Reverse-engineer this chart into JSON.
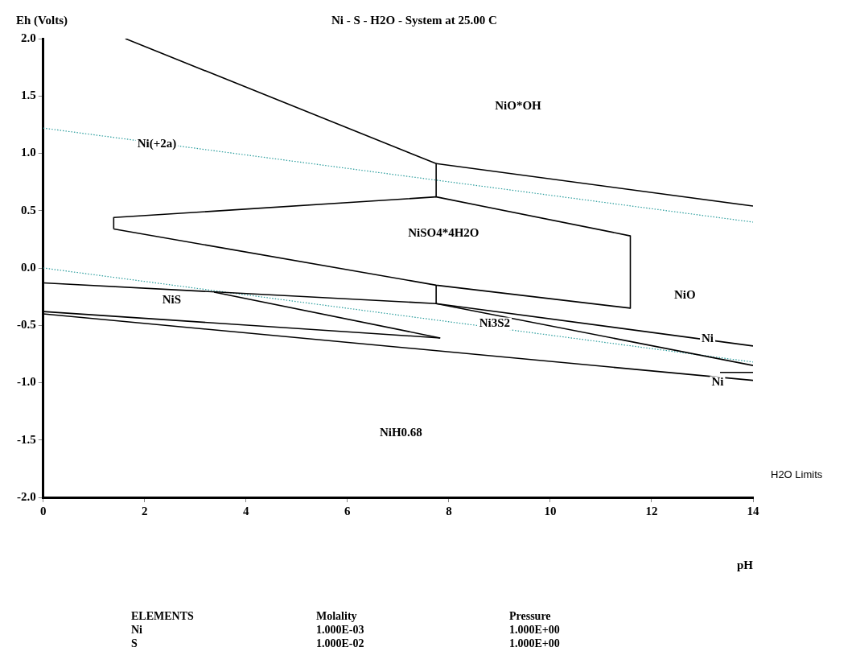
{
  "chart_data": {
    "type": "line",
    "title": "Ni - S - H2O - System at 25.00 C",
    "xlabel": "pH",
    "ylabel": "Eh (Volts)",
    "xlim": [
      0,
      14
    ],
    "xticks": [
      0,
      2,
      4,
      6,
      8,
      10,
      12,
      14
    ],
    "ylim": [
      -2.0,
      2.0
    ],
    "yticks": [
      {
        "value": -2.0,
        "label": "-2.0"
      },
      {
        "value": -1.5,
        "label": "-1.5"
      },
      {
        "value": -1.0,
        "label": "-1.0"
      },
      {
        "value": -0.5,
        "label": "-0.5"
      },
      {
        "value": 0.0,
        "label": "0.0"
      },
      {
        "value": 0.5,
        "label": "0.5"
      },
      {
        "value": 1.0,
        "label": "1.0"
      },
      {
        "value": 1.5,
        "label": "1.5"
      },
      {
        "value": 2.0,
        "label": "2.0"
      }
    ],
    "grid": false,
    "marker": "none",
    "line_style": "solid",
    "series": [
      {
        "type": "line",
        "color": "#000000",
        "x": [
          1.62,
          7.75,
          7.75,
          11.58,
          11.58
        ],
        "values": [
          2.0,
          0.91,
          0.62,
          0.28,
          -0.35
        ]
      },
      {
        "type": "line",
        "color": "#000000",
        "x": [
          7.75,
          14
        ],
        "values": [
          0.91,
          0.54
        ]
      },
      {
        "type": "line",
        "color": "#000000",
        "x": [
          1.39,
          1.39,
          7.75
        ],
        "values": [
          0.34,
          0.44,
          0.62
        ]
      },
      {
        "type": "line",
        "color": "#000000",
        "x": [
          1.39,
          7.75,
          11.58
        ],
        "values": [
          0.34,
          -0.15,
          -0.35
        ]
      },
      {
        "type": "line",
        "color": "#000000",
        "x": [
          0,
          7.75,
          7.75
        ],
        "values": [
          -0.13,
          -0.31,
          -0.15
        ]
      },
      {
        "type": "line",
        "color": "#000000",
        "x": [
          7.75,
          14
        ],
        "values": [
          -0.31,
          -0.68
        ]
      },
      {
        "type": "line",
        "color": "#000000",
        "x": [
          7.75,
          14
        ],
        "values": [
          -0.31,
          -0.85
        ]
      },
      {
        "type": "line",
        "color": "#000000",
        "x": [
          3.37,
          7.83
        ],
        "values": [
          -0.21,
          -0.61
        ]
      },
      {
        "type": "line",
        "color": "#000000",
        "x": [
          0,
          7.83
        ],
        "values": [
          -0.38,
          -0.61
        ]
      },
      {
        "type": "line",
        "color": "#000000",
        "x": [
          0,
          14
        ],
        "values": [
          -0.4,
          -0.98
        ]
      },
      {
        "type": "line",
        "color": "#000000",
        "x": [
          13.35,
          14
        ],
        "values": [
          -0.91,
          -0.91
        ]
      },
      {
        "type": "line",
        "color": "#2a9d9d",
        "line_style": "dotted",
        "x": [
          0,
          14
        ],
        "values": [
          1.22,
          0.4
        ]
      },
      {
        "type": "line",
        "color": "#2a9d9d",
        "line_style": "dotted",
        "x": [
          0,
          14
        ],
        "values": [
          0.0,
          -0.82
        ]
      }
    ],
    "annotations": [
      "NiO*OH",
      "Ni(+2a)",
      "NiSO4*4H2O",
      "NiS",
      "NiO",
      "Ni3S2",
      "Ni",
      "Ni",
      "NiH0.68",
      "H2O Limits",
      "ELEMENTS",
      "Molality",
      "Pressure",
      "Ni",
      "1.000E-03",
      "1.000E+00",
      "S",
      "1.000E-02",
      "1.000E+00"
    ]
  }
}
